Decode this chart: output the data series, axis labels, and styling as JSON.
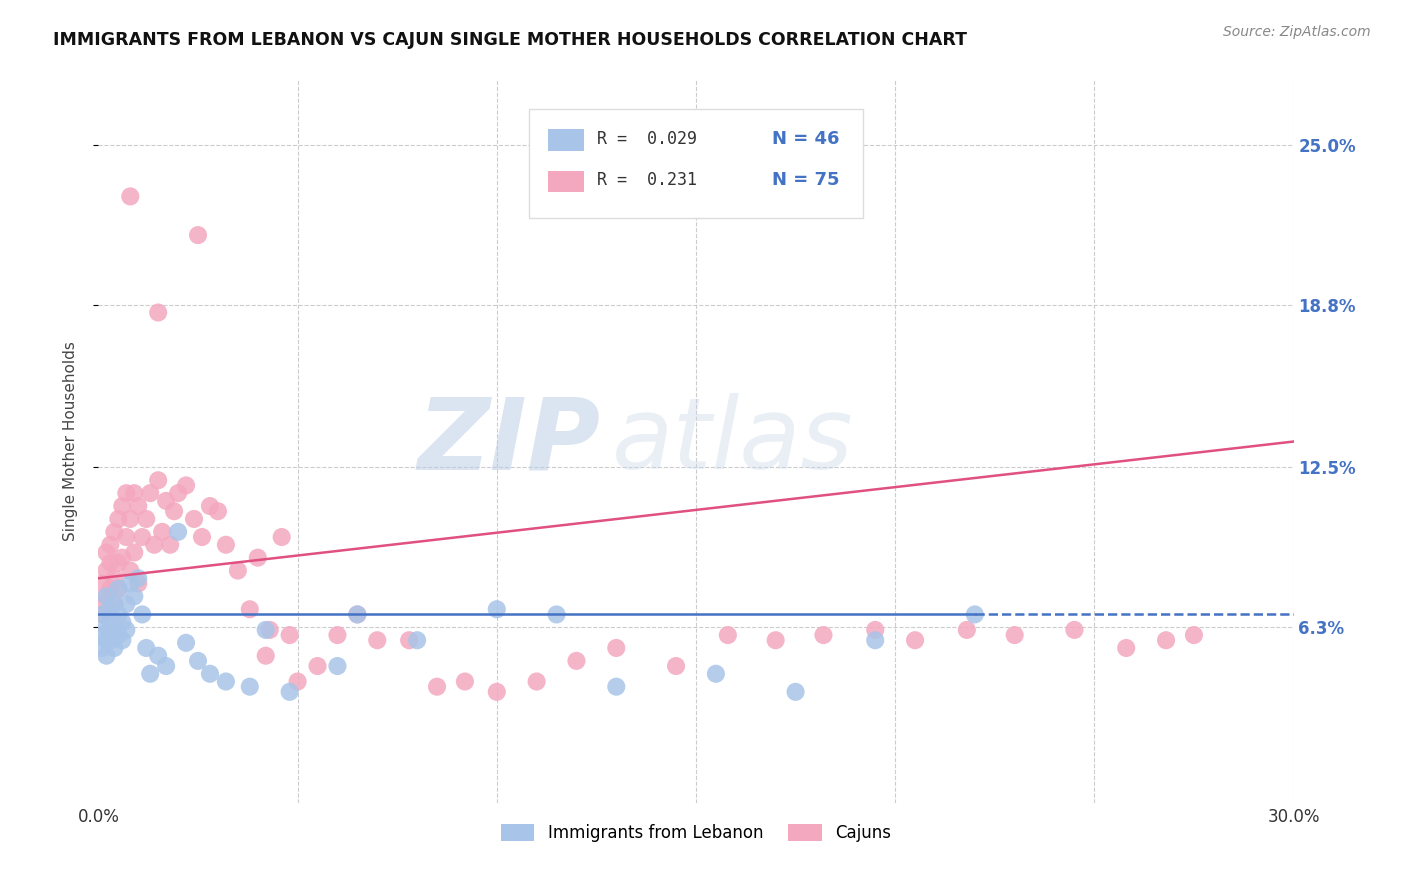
{
  "title": "IMMIGRANTS FROM LEBANON VS CAJUN SINGLE MOTHER HOUSEHOLDS CORRELATION CHART",
  "source": "Source: ZipAtlas.com",
  "ylabel": "Single Mother Households",
  "xmin": 0.0,
  "xmax": 0.3,
  "ytick_labels": [
    "6.3%",
    "12.5%",
    "18.8%",
    "25.0%"
  ],
  "ytick_values": [
    0.063,
    0.125,
    0.188,
    0.25
  ],
  "legend_r_blue": "R =  0.029",
  "legend_n_blue": "N = 46",
  "legend_r_pink": "R =  0.231",
  "legend_n_pink": "N = 75",
  "blue_color": "#a8c4e8",
  "pink_color": "#f4a8c0",
  "blue_line_color": "#4472C4",
  "pink_line_color": "#e05080",
  "watermark_zip": "ZIP",
  "watermark_atlas": "atlas",
  "blue_scatter_x": [
    0.001,
    0.001,
    0.001,
    0.002,
    0.002,
    0.002,
    0.002,
    0.003,
    0.003,
    0.003,
    0.004,
    0.004,
    0.004,
    0.005,
    0.005,
    0.005,
    0.006,
    0.006,
    0.007,
    0.007,
    0.008,
    0.009,
    0.01,
    0.011,
    0.012,
    0.013,
    0.015,
    0.017,
    0.02,
    0.022,
    0.025,
    0.028,
    0.032,
    0.038,
    0.042,
    0.048,
    0.06,
    0.065,
    0.08,
    0.1,
    0.115,
    0.13,
    0.155,
    0.175,
    0.195,
    0.22
  ],
  "blue_scatter_y": [
    0.068,
    0.06,
    0.055,
    0.075,
    0.063,
    0.058,
    0.052,
    0.07,
    0.065,
    0.058,
    0.072,
    0.063,
    0.055,
    0.078,
    0.068,
    0.06,
    0.065,
    0.058,
    0.072,
    0.062,
    0.08,
    0.075,
    0.082,
    0.068,
    0.055,
    0.045,
    0.052,
    0.048,
    0.1,
    0.057,
    0.05,
    0.045,
    0.042,
    0.04,
    0.062,
    0.038,
    0.048,
    0.068,
    0.058,
    0.07,
    0.068,
    0.04,
    0.045,
    0.038,
    0.058,
    0.068
  ],
  "pink_scatter_x": [
    0.001,
    0.001,
    0.001,
    0.002,
    0.002,
    0.002,
    0.003,
    0.003,
    0.003,
    0.004,
    0.004,
    0.004,
    0.005,
    0.005,
    0.005,
    0.006,
    0.006,
    0.007,
    0.007,
    0.008,
    0.008,
    0.009,
    0.009,
    0.01,
    0.01,
    0.011,
    0.012,
    0.013,
    0.014,
    0.015,
    0.016,
    0.017,
    0.018,
    0.019,
    0.02,
    0.022,
    0.024,
    0.026,
    0.028,
    0.03,
    0.032,
    0.035,
    0.038,
    0.04,
    0.043,
    0.046,
    0.05,
    0.055,
    0.06,
    0.065,
    0.07,
    0.078,
    0.085,
    0.092,
    0.1,
    0.11,
    0.12,
    0.13,
    0.145,
    0.158,
    0.17,
    0.182,
    0.195,
    0.205,
    0.218,
    0.23,
    0.245,
    0.258,
    0.268,
    0.275,
    0.042,
    0.048,
    0.015,
    0.025,
    0.008
  ],
  "pink_scatter_y": [
    0.068,
    0.08,
    0.072,
    0.085,
    0.075,
    0.092,
    0.078,
    0.095,
    0.088,
    0.072,
    0.1,
    0.082,
    0.088,
    0.105,
    0.078,
    0.09,
    0.11,
    0.098,
    0.115,
    0.085,
    0.105,
    0.092,
    0.115,
    0.08,
    0.11,
    0.098,
    0.105,
    0.115,
    0.095,
    0.12,
    0.1,
    0.112,
    0.095,
    0.108,
    0.115,
    0.118,
    0.105,
    0.098,
    0.11,
    0.108,
    0.095,
    0.085,
    0.07,
    0.09,
    0.062,
    0.098,
    0.042,
    0.048,
    0.06,
    0.068,
    0.058,
    0.058,
    0.04,
    0.042,
    0.038,
    0.042,
    0.05,
    0.055,
    0.048,
    0.06,
    0.058,
    0.06,
    0.062,
    0.058,
    0.062,
    0.06,
    0.062,
    0.055,
    0.058,
    0.06,
    0.052,
    0.06,
    0.185,
    0.215,
    0.23
  ]
}
